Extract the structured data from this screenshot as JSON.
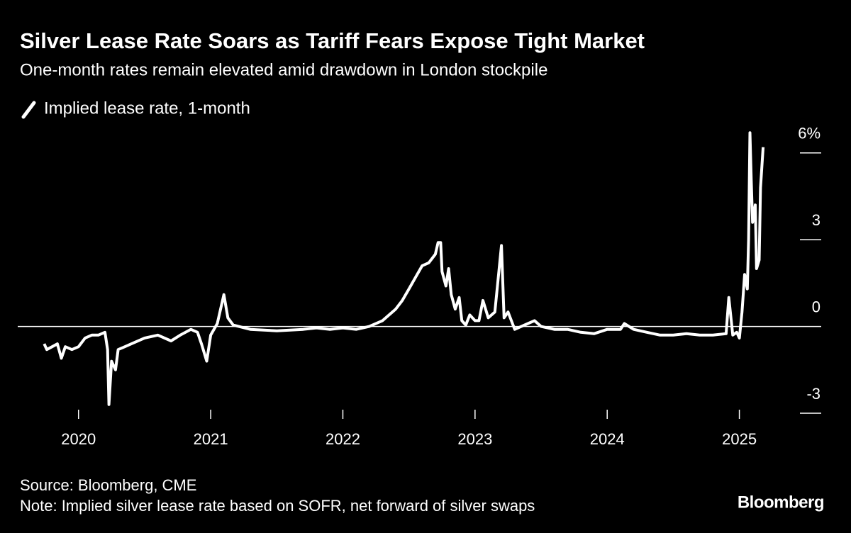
{
  "chart_data": {
    "type": "line",
    "title": "Silver Lease Rate Soars as Tariff Fears Expose Tight Market",
    "subtitle": "One-month rates remain elevated amid drawdown in London stockpile",
    "source": "Source: Bloomberg, CME",
    "note": "Note: Implied silver lease rate based on SOFR, net forward of silver swaps",
    "logo": "Bloomberg",
    "xlim": [
      2019.54,
      2025.63
    ],
    "xticks": [
      2020,
      2021,
      2022,
      2023,
      2024,
      2025
    ],
    "ylim": [
      -3,
      7
    ],
    "yticks": [
      -3,
      0,
      3,
      {
        "value": 6,
        "label": "6%"
      }
    ],
    "x": [
      2019.74,
      2019.76,
      2019.8,
      2019.84,
      2019.87,
      2019.9,
      2019.95,
      2020.0,
      2020.05,
      2020.1,
      2020.15,
      2020.2,
      2020.22,
      2020.23,
      2020.25,
      2020.28,
      2020.3,
      2020.35,
      2020.4,
      2020.5,
      2020.6,
      2020.7,
      2020.77,
      2020.85,
      2020.9,
      2020.93,
      2020.97,
      2021.0,
      2021.05,
      2021.1,
      2021.13,
      2021.17,
      2021.3,
      2021.5,
      2021.7,
      2021.8,
      2021.9,
      2022.0,
      2022.1,
      2022.2,
      2022.3,
      2022.4,
      2022.45,
      2022.5,
      2022.55,
      2022.6,
      2022.65,
      2022.7,
      2022.72,
      2022.74,
      2022.75,
      2022.78,
      2022.8,
      2022.82,
      2022.85,
      2022.88,
      2022.9,
      2022.93,
      2022.96,
      2023.0,
      2023.03,
      2023.06,
      2023.1,
      2023.15,
      2023.2,
      2023.22,
      2023.25,
      2023.3,
      2023.35,
      2023.4,
      2023.45,
      2023.5,
      2023.6,
      2023.7,
      2023.8,
      2023.9,
      2024.0,
      2024.1,
      2024.13,
      2024.2,
      2024.3,
      2024.4,
      2024.5,
      2024.6,
      2024.7,
      2024.8,
      2024.9,
      2024.92,
      2024.95,
      2024.98,
      2025.0,
      2025.02,
      2025.04,
      2025.06,
      2025.07,
      2025.08,
      2025.09,
      2025.1,
      2025.12,
      2025.13,
      2025.15,
      2025.16,
      2025.18
    ],
    "series": [
      {
        "name": "Implied lease rate, 1-month",
        "color": "#ffffff",
        "values": [
          -0.6,
          -0.8,
          -0.7,
          -0.6,
          -1.1,
          -0.7,
          -0.8,
          -0.7,
          -0.4,
          -0.3,
          -0.3,
          -0.2,
          -0.8,
          -2.7,
          -1.2,
          -1.5,
          -0.8,
          -0.7,
          -0.6,
          -0.4,
          -0.3,
          -0.5,
          -0.3,
          -0.1,
          -0.2,
          -0.6,
          -1.2,
          -0.3,
          0.1,
          1.1,
          0.3,
          0.05,
          -0.1,
          -0.15,
          -0.1,
          -0.05,
          -0.1,
          -0.05,
          -0.1,
          0.0,
          0.2,
          0.6,
          0.9,
          1.3,
          1.7,
          2.1,
          2.2,
          2.5,
          2.9,
          2.9,
          1.9,
          1.4,
          2.0,
          1.1,
          0.6,
          1.0,
          0.2,
          0.05,
          0.4,
          0.2,
          0.2,
          0.9,
          0.3,
          0.5,
          2.8,
          0.3,
          0.5,
          -0.1,
          0.0,
          0.1,
          0.2,
          0.0,
          -0.1,
          -0.1,
          -0.2,
          -0.25,
          -0.1,
          -0.1,
          0.1,
          -0.1,
          -0.2,
          -0.3,
          -0.3,
          -0.25,
          -0.3,
          -0.3,
          -0.25,
          1.0,
          -0.3,
          -0.2,
          -0.4,
          0.5,
          1.8,
          1.3,
          3.0,
          6.7,
          5.0,
          3.6,
          4.2,
          2.0,
          2.3,
          4.8,
          6.2
        ]
      }
    ]
  }
}
